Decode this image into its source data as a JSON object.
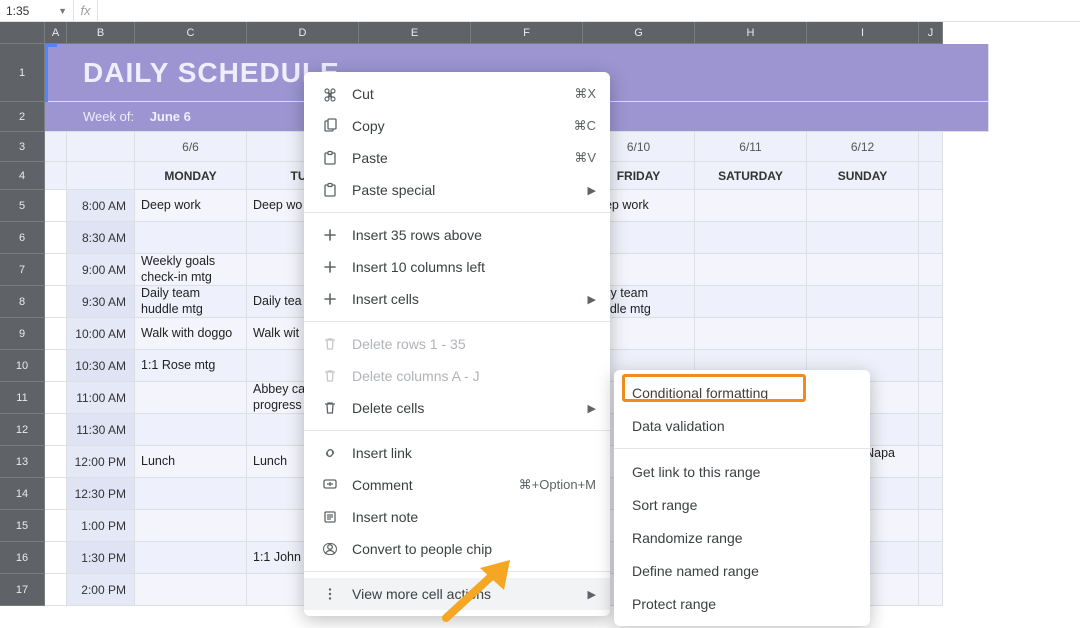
{
  "name_box": "1:35",
  "columns": [
    "A",
    "B",
    "C",
    "D",
    "E",
    "F",
    "G",
    "H",
    "I",
    "J"
  ],
  "row_numbers": [
    "1",
    "2",
    "3",
    "4",
    "5",
    "6",
    "7",
    "8",
    "9",
    "10",
    "11",
    "12",
    "13",
    "14",
    "15",
    "16",
    "17"
  ],
  "header": {
    "title": "DAILY SCHEDULE",
    "week_of_label": "Week of:",
    "week_of_value": "June 6",
    "bg_color": "#9c95d1",
    "title_color": "#f0edff",
    "title_fontsize": 28
  },
  "days": {
    "dates": [
      "6/6",
      "",
      "",
      "",
      "6/10",
      "6/11",
      "6/12"
    ],
    "names": [
      "MONDAY",
      "TUE",
      "",
      "",
      "FRIDAY",
      "SATURDAY",
      "SUNDAY"
    ]
  },
  "times": [
    "8:00 AM",
    "8:30 AM",
    "9:00 AM",
    "9:30 AM",
    "10:00 AM",
    "10:30 AM",
    "11:00 AM",
    "11:30 AM",
    "12:00 PM",
    "12:30 PM",
    "1:00 PM",
    "1:30 PM",
    "2:00 PM"
  ],
  "cells": {
    "mon": [
      "Deep work",
      "",
      "Weekly goals check-in mtg",
      "Daily team huddle mtg",
      "Walk with doggo",
      "1:1 Rose mtg",
      "",
      "",
      "Lunch",
      "",
      "",
      "",
      ""
    ],
    "tue": [
      "Deep wo",
      "",
      "",
      "Daily tea mtg",
      "Walk wit",
      "",
      "Abbey ca progress",
      "",
      "Lunch",
      "",
      "",
      "1:1 John",
      ""
    ],
    "fri": [
      "Deep work",
      "",
      "",
      "Daily team huddle mtg",
      "",
      "",
      "",
      "",
      "",
      "",
      "",
      "",
      ""
    ],
    "sat": [
      "",
      "",
      "",
      "",
      "",
      "",
      "",
      "",
      "",
      "",
      "",
      "",
      ""
    ],
    "sun": [
      "",
      "",
      "",
      "",
      "",
      "",
      "",
      "",
      "ad trip to Napa ley",
      "",
      "",
      "",
      ""
    ]
  },
  "body_colors": {
    "row_bg": "#f4f5fc",
    "row_bg_alt": "#eef0fb",
    "time_bg": "#e5e8f6",
    "time_bg_alt": "#dfe3f4",
    "grid_line": "#dcdfe3"
  },
  "context_menu": {
    "items": [
      {
        "icon": "cut",
        "label": "Cut",
        "shortcut": "⌘X"
      },
      {
        "icon": "copy",
        "label": "Copy",
        "shortcut": "⌘C"
      },
      {
        "icon": "paste",
        "label": "Paste",
        "shortcut": "⌘V"
      },
      {
        "icon": "paste",
        "label": "Paste special",
        "arrow": true
      },
      {
        "sep": true
      },
      {
        "icon": "plus",
        "label": "Insert 35 rows above"
      },
      {
        "icon": "plus",
        "label": "Insert 10 columns left"
      },
      {
        "icon": "plus",
        "label": "Insert cells",
        "arrow": true
      },
      {
        "sep": true
      },
      {
        "icon": "trash",
        "label": "Delete rows 1 - 35",
        "disabled": true
      },
      {
        "icon": "trash",
        "label": "Delete columns A - J",
        "disabled": true
      },
      {
        "icon": "trash",
        "label": "Delete cells",
        "arrow": true
      },
      {
        "sep": true
      },
      {
        "icon": "link",
        "label": "Insert link"
      },
      {
        "icon": "comment",
        "label": "Comment",
        "shortcut": "⌘+Option+M"
      },
      {
        "icon": "note",
        "label": "Insert note"
      },
      {
        "icon": "person",
        "label": "Convert to people chip"
      },
      {
        "sep": true
      },
      {
        "icon": "more",
        "label": "View more cell actions",
        "arrow": true,
        "hov": true
      }
    ]
  },
  "submenu": {
    "items": [
      {
        "label": "Conditional formatting",
        "highlight": true
      },
      {
        "label": "Data validation"
      },
      {
        "sep": true
      },
      {
        "label": "Get link to this range"
      },
      {
        "label": "Sort range"
      },
      {
        "label": "Randomize range"
      },
      {
        "label": "Define named range"
      },
      {
        "label": "Protect range"
      }
    ]
  },
  "annotation": {
    "arrow_color": "#f5a623",
    "highlight_color": "#f28b1e"
  }
}
